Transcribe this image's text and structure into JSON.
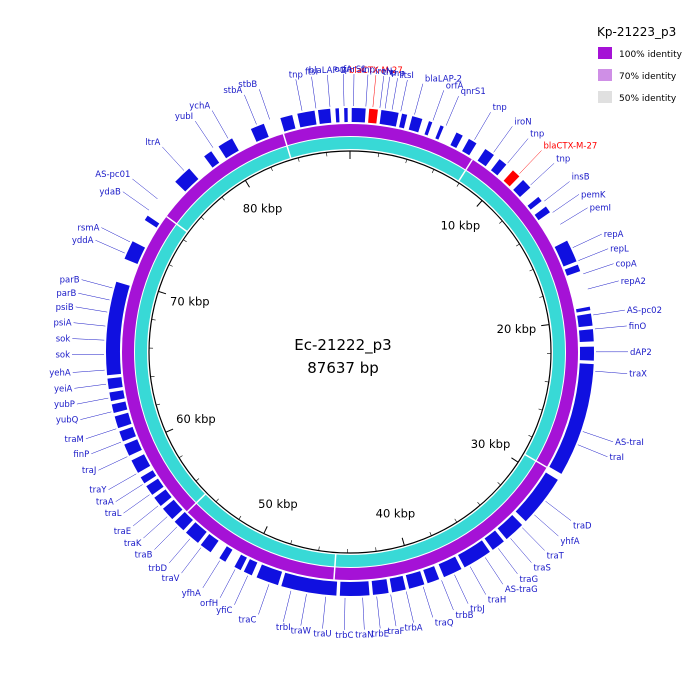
{
  "center": {
    "name": "Ec-21222_p3",
    "length_label": "87637 bp"
  },
  "legend": {
    "title": "Kp-21223_p3",
    "items": [
      {
        "label": "100% identity",
        "color": "#a512d6"
      },
      {
        "label": "70% identity",
        "color": "#cf8fe6"
      },
      {
        "label": "50% identity",
        "color": "#e0e0e0"
      }
    ]
  },
  "colors": {
    "gene": "#1010e0",
    "gene_highlight": "#ff0000",
    "label": "#1a1ac8",
    "label_highlight": "#ff0000",
    "ring_outer": "#a512d6",
    "ring_inner": "#38d9d6",
    "backbone": "#000000"
  },
  "chart_data": {
    "type": "circular-genome",
    "total_bp": 87637,
    "kbp_ticks": [
      {
        "pos_kbp": 10,
        "label": "10 kbp"
      },
      {
        "pos_kbp": 20,
        "label": "20 kbp"
      },
      {
        "pos_kbp": 30,
        "label": "30 kbp"
      },
      {
        "pos_kbp": 40,
        "label": "40 kbp"
      },
      {
        "pos_kbp": 50,
        "label": "50 kbp"
      },
      {
        "pos_kbp": 60,
        "label": "60 kbp"
      },
      {
        "pos_kbp": 70,
        "label": "70 kbp"
      },
      {
        "pos_kbp": 80,
        "label": "80 kbp"
      }
    ],
    "genes": [
      {
        "label": "blaCTX-M-27",
        "pos_kbp": 1.3,
        "highlight": true
      },
      {
        "label": "tnp",
        "pos_kbp": 2.0
      },
      {
        "label": "ftsI",
        "pos_kbp": 2.9
      },
      {
        "label": "blaLAP-2",
        "pos_kbp": 3.7
      },
      {
        "label": "orfA",
        "pos_kbp": 4.8
      },
      {
        "label": "qnrS1",
        "pos_kbp": 5.6
      },
      {
        "label": "tnp",
        "pos_kbp": 7.4
      },
      {
        "label": "iroN",
        "pos_kbp": 8.7
      },
      {
        "label": "tnp",
        "pos_kbp": 9.7
      },
      {
        "label": "blaCTX-M-27",
        "pos_kbp": 10.6,
        "highlight": true
      },
      {
        "label": "tnp",
        "pos_kbp": 11.5
      },
      {
        "label": "insB",
        "pos_kbp": 12.7
      },
      {
        "label": "pemK",
        "pos_kbp": 13.5
      },
      {
        "label": "pemI",
        "pos_kbp": 14.3
      },
      {
        "label": "repA",
        "pos_kbp": 15.8
      },
      {
        "label": "repL",
        "pos_kbp": 16.6
      },
      {
        "label": "copA",
        "pos_kbp": 17.4
      },
      {
        "label": "repA2",
        "pos_kbp": 18.3
      },
      {
        "label": "AS-pc02",
        "pos_kbp": 19.8
      },
      {
        "label": "finO",
        "pos_kbp": 20.6
      },
      {
        "label": "dAP2",
        "pos_kbp": 21.9
      },
      {
        "label": "traX",
        "pos_kbp": 23.0
      },
      {
        "label": "AS-traI",
        "pos_kbp": 26.5
      },
      {
        "label": "traI",
        "pos_kbp": 27.3
      },
      {
        "label": "traD",
        "pos_kbp": 31.0
      },
      {
        "label": "yhfA",
        "pos_kbp": 32.0
      },
      {
        "label": "traT",
        "pos_kbp": 33.0
      },
      {
        "label": "traS",
        "pos_kbp": 33.9
      },
      {
        "label": "traG",
        "pos_kbp": 34.8
      },
      {
        "label": "AS-traG",
        "pos_kbp": 35.7
      },
      {
        "label": "traH",
        "pos_kbp": 36.7
      },
      {
        "label": "trbJ",
        "pos_kbp": 37.7
      },
      {
        "label": "trbB",
        "pos_kbp": 38.5
      },
      {
        "label": "traQ",
        "pos_kbp": 39.6
      },
      {
        "label": "trbA",
        "pos_kbp": 40.6
      },
      {
        "label": "traF",
        "pos_kbp": 41.5
      },
      {
        "label": "trbE",
        "pos_kbp": 42.3
      },
      {
        "label": "traN",
        "pos_kbp": 43.1
      },
      {
        "label": "trbC",
        "pos_kbp": 44.1
      },
      {
        "label": "traU",
        "pos_kbp": 45.2
      },
      {
        "label": "traW",
        "pos_kbp": 46.3
      },
      {
        "label": "trbI",
        "pos_kbp": 47.2
      },
      {
        "label": "traC",
        "pos_kbp": 48.5
      },
      {
        "label": "yfiC",
        "pos_kbp": 49.8
      },
      {
        "label": "orfH",
        "pos_kbp": 50.6
      },
      {
        "label": "yfhA",
        "pos_kbp": 51.6
      },
      {
        "label": "traV",
        "pos_kbp": 52.9
      },
      {
        "label": "trbD",
        "pos_kbp": 53.7
      },
      {
        "label": "traB",
        "pos_kbp": 54.7
      },
      {
        "label": "traK",
        "pos_kbp": 55.5
      },
      {
        "label": "traE",
        "pos_kbp": 56.3
      },
      {
        "label": "traL",
        "pos_kbp": 57.1
      },
      {
        "label": "traA",
        "pos_kbp": 57.8
      },
      {
        "label": "traY",
        "pos_kbp": 58.5
      },
      {
        "label": "traJ",
        "pos_kbp": 59.6
      },
      {
        "label": "finP",
        "pos_kbp": 60.5
      },
      {
        "label": "traM",
        "pos_kbp": 61.3
      },
      {
        "label": "yubQ",
        "pos_kbp": 62.3
      },
      {
        "label": "yubP",
        "pos_kbp": 63.1
      },
      {
        "label": "yeiA",
        "pos_kbp": 63.9
      },
      {
        "label": "yehA",
        "pos_kbp": 64.7
      },
      {
        "label": "sok",
        "pos_kbp": 65.6
      },
      {
        "label": "sok",
        "pos_kbp": 66.4
      },
      {
        "label": "psiA",
        "pos_kbp": 67.2
      },
      {
        "label": "psiB",
        "pos_kbp": 68.0
      },
      {
        "label": "parB",
        "pos_kbp": 68.7
      },
      {
        "label": "parB",
        "pos_kbp": 69.4
      },
      {
        "label": "yddA",
        "pos_kbp": 71.5
      },
      {
        "label": "rsmA",
        "pos_kbp": 72.2
      },
      {
        "label": "ydaB",
        "pos_kbp": 74.3
      },
      {
        "label": "AS-pc01",
        "pos_kbp": 75.1
      },
      {
        "label": "ltrA",
        "pos_kbp": 77.3
      },
      {
        "label": "yubI",
        "pos_kbp": 79.4
      },
      {
        "label": "ychA",
        "pos_kbp": 80.4
      },
      {
        "label": "stbA",
        "pos_kbp": 82.2
      },
      {
        "label": "stbB",
        "pos_kbp": 83.0
      },
      {
        "label": "tnp",
        "pos_kbp": 84.9
      },
      {
        "label": "ftsI",
        "pos_kbp": 85.7
      },
      {
        "label": "blaLAP-2",
        "pos_kbp": 86.5
      },
      {
        "label": "orfA",
        "pos_kbp": 87.3
      },
      {
        "label": "qnrS1",
        "pos_kbp": 0.2
      },
      {
        "label": "tnp",
        "pos_kbp": 0.9
      },
      {
        "label": "iroN",
        "pos_kbp": 1.7
      },
      {
        "label": "tnp",
        "pos_kbp": 2.4
      }
    ]
  }
}
